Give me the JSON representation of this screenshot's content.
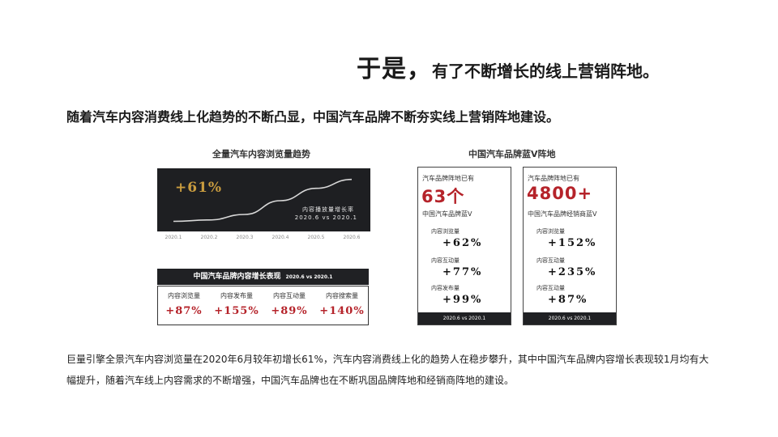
{
  "header": {
    "title_big": "于是，",
    "title_small": "有了不断增长的线上营销阵地。"
  },
  "subtitle": "随着汽车内容消费线上化趋势的不断凸显，中国汽车品牌不断夯实线上营销阵地建设。",
  "browse_chart": {
    "title": "全量汽车内容浏览量趋势",
    "growth": "+61%",
    "note_line1": "内容播放量增长率",
    "note_line2": "2020.6 vs 2020.1",
    "months": [
      "2020.1",
      "2020.2",
      "2020.3",
      "2020.4",
      "2020.5",
      "2020.6"
    ]
  },
  "chart_data": {
    "type": "line",
    "title": "全量汽车内容浏览量趋势",
    "categories": [
      "2020.1",
      "2020.2",
      "2020.3",
      "2020.4",
      "2020.5",
      "2020.6"
    ],
    "values": [
      1.0,
      1.02,
      1.1,
      1.3,
      1.48,
      1.61
    ],
    "xlabel": "",
    "ylabel": "",
    "annotation": "+61%",
    "grid": false
  },
  "growth_table": {
    "title": "中国汽车品牌内容增长表现",
    "date": "2020.6 vs 2020.1",
    "cells": [
      {
        "label": "内容浏览量",
        "value": "+87%"
      },
      {
        "label": "内容发布量",
        "value": "+155%"
      },
      {
        "label": "内容互动量",
        "value": "+89%"
      },
      {
        "label": "内容搜索量",
        "value": "+140%"
      }
    ]
  },
  "blue_v": {
    "title": "中国汽车品牌蓝V阵地",
    "cards": [
      {
        "intro": "汽车品牌阵地已有",
        "big": "63个",
        "sub": "中国汽车品牌蓝V",
        "metrics": [
          {
            "label": "内容浏览量",
            "value": "+62%"
          },
          {
            "label": "内容互动量",
            "value": "+77%"
          },
          {
            "label": "内容发布量",
            "value": "+99%"
          }
        ],
        "foot": "2020.6 vs 2020.1"
      },
      {
        "intro": "汽车品牌阵地已有",
        "big": "4800+",
        "sub": "中国汽车品牌经销商蓝V",
        "metrics": [
          {
            "label": "内容浏览量",
            "value": "+152%"
          },
          {
            "label": "内容互动量",
            "value": "+235%"
          },
          {
            "label": "内容互动量",
            "value": "+87%"
          }
        ],
        "foot": "2020.6 vs 2020.1"
      }
    ]
  },
  "paragraph": "巨量引擎全景汽车内容浏览量在2020年6月较年初增长61%，汽车内容消费线上化的趋势人在稳步攀升，其中中国汽车品牌内容增长表现较1月均有大幅提升，随着汽车线上内容需求的不断增强，中国汽车品牌也在不断巩固品牌阵地和经销商阵地的建设。",
  "colors": {
    "accent_red": "#b5232a",
    "gold": "#c99c3f",
    "dark_panel": "#1e1f22"
  }
}
